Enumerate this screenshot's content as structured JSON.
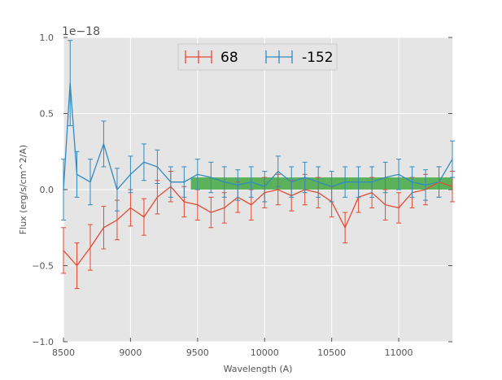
{
  "chart_data": {
    "type": "line",
    "title": "",
    "xlabel": "Wavelength (A)",
    "ylabel": "Flux (erg/s/cm^2/A)",
    "offset_text": "1e−18",
    "xlim": [
      8500,
      11400
    ],
    "ylim": [
      -1.0,
      1.0
    ],
    "xticks": [
      "8500",
      "9000",
      "9500",
      "10000",
      "10500",
      "11000"
    ],
    "yticks": [
      "−1.0",
      "−0.5",
      "0.0",
      "0.5",
      "1.0"
    ],
    "grid": true,
    "legend": "top-center",
    "band": {
      "x_start": 9450,
      "x_end": 11400,
      "y_low": 0.0,
      "y_high": 0.08,
      "color": "#2ca02c"
    },
    "series": [
      {
        "name": "68",
        "color": "#e24a33",
        "x": [
          8500,
          8600,
          8700,
          8800,
          8900,
          9000,
          9100,
          9200,
          9300,
          9400,
          9500,
          9600,
          9700,
          9800,
          9900,
          10000,
          10100,
          10200,
          10300,
          10400,
          10500,
          10600,
          10700,
          10800,
          10900,
          11000,
          11100,
          11200,
          11300,
          11400
        ],
        "y": [
          -0.4,
          -0.5,
          -0.38,
          -0.25,
          -0.2,
          -0.12,
          -0.18,
          -0.05,
          0.02,
          -0.08,
          -0.1,
          -0.15,
          -0.12,
          -0.05,
          -0.1,
          -0.02,
          0.0,
          -0.04,
          0.0,
          -0.02,
          -0.08,
          -0.25,
          -0.05,
          -0.02,
          -0.1,
          -0.12,
          -0.02,
          0.0,
          0.05,
          0.02
        ],
        "err": [
          0.15,
          0.15,
          0.15,
          0.14,
          0.13,
          0.12,
          0.12,
          0.11,
          0.1,
          0.1,
          0.1,
          0.1,
          0.1,
          0.1,
          0.1,
          0.1,
          0.1,
          0.1,
          0.1,
          0.1,
          0.1,
          0.1,
          0.1,
          0.1,
          0.1,
          0.1,
          0.1,
          0.1,
          0.1,
          0.1
        ]
      },
      {
        "name": "-152",
        "color": "#348abd",
        "x": [
          8500,
          8550,
          8600,
          8700,
          8800,
          8900,
          9000,
          9100,
          9200,
          9300,
          9400,
          9500,
          9600,
          9700,
          9800,
          9900,
          10000,
          10100,
          10200,
          10300,
          10400,
          10500,
          10600,
          10700,
          10800,
          10900,
          11000,
          11100,
          11200,
          11300,
          11400
        ],
        "y": [
          0.0,
          0.7,
          0.1,
          0.05,
          0.3,
          0.0,
          0.1,
          0.18,
          0.15,
          0.05,
          0.05,
          0.1,
          0.08,
          0.05,
          0.03,
          0.05,
          0.02,
          0.12,
          0.05,
          0.08,
          0.05,
          0.02,
          0.05,
          0.05,
          0.05,
          0.08,
          0.1,
          0.05,
          0.03,
          0.05,
          0.2
        ],
        "err": [
          0.2,
          0.28,
          0.15,
          0.15,
          0.15,
          0.14,
          0.12,
          0.12,
          0.11,
          0.1,
          0.1,
          0.1,
          0.1,
          0.1,
          0.1,
          0.1,
          0.1,
          0.1,
          0.1,
          0.1,
          0.1,
          0.1,
          0.1,
          0.1,
          0.1,
          0.1,
          0.1,
          0.1,
          0.1,
          0.1,
          0.12
        ]
      }
    ]
  }
}
